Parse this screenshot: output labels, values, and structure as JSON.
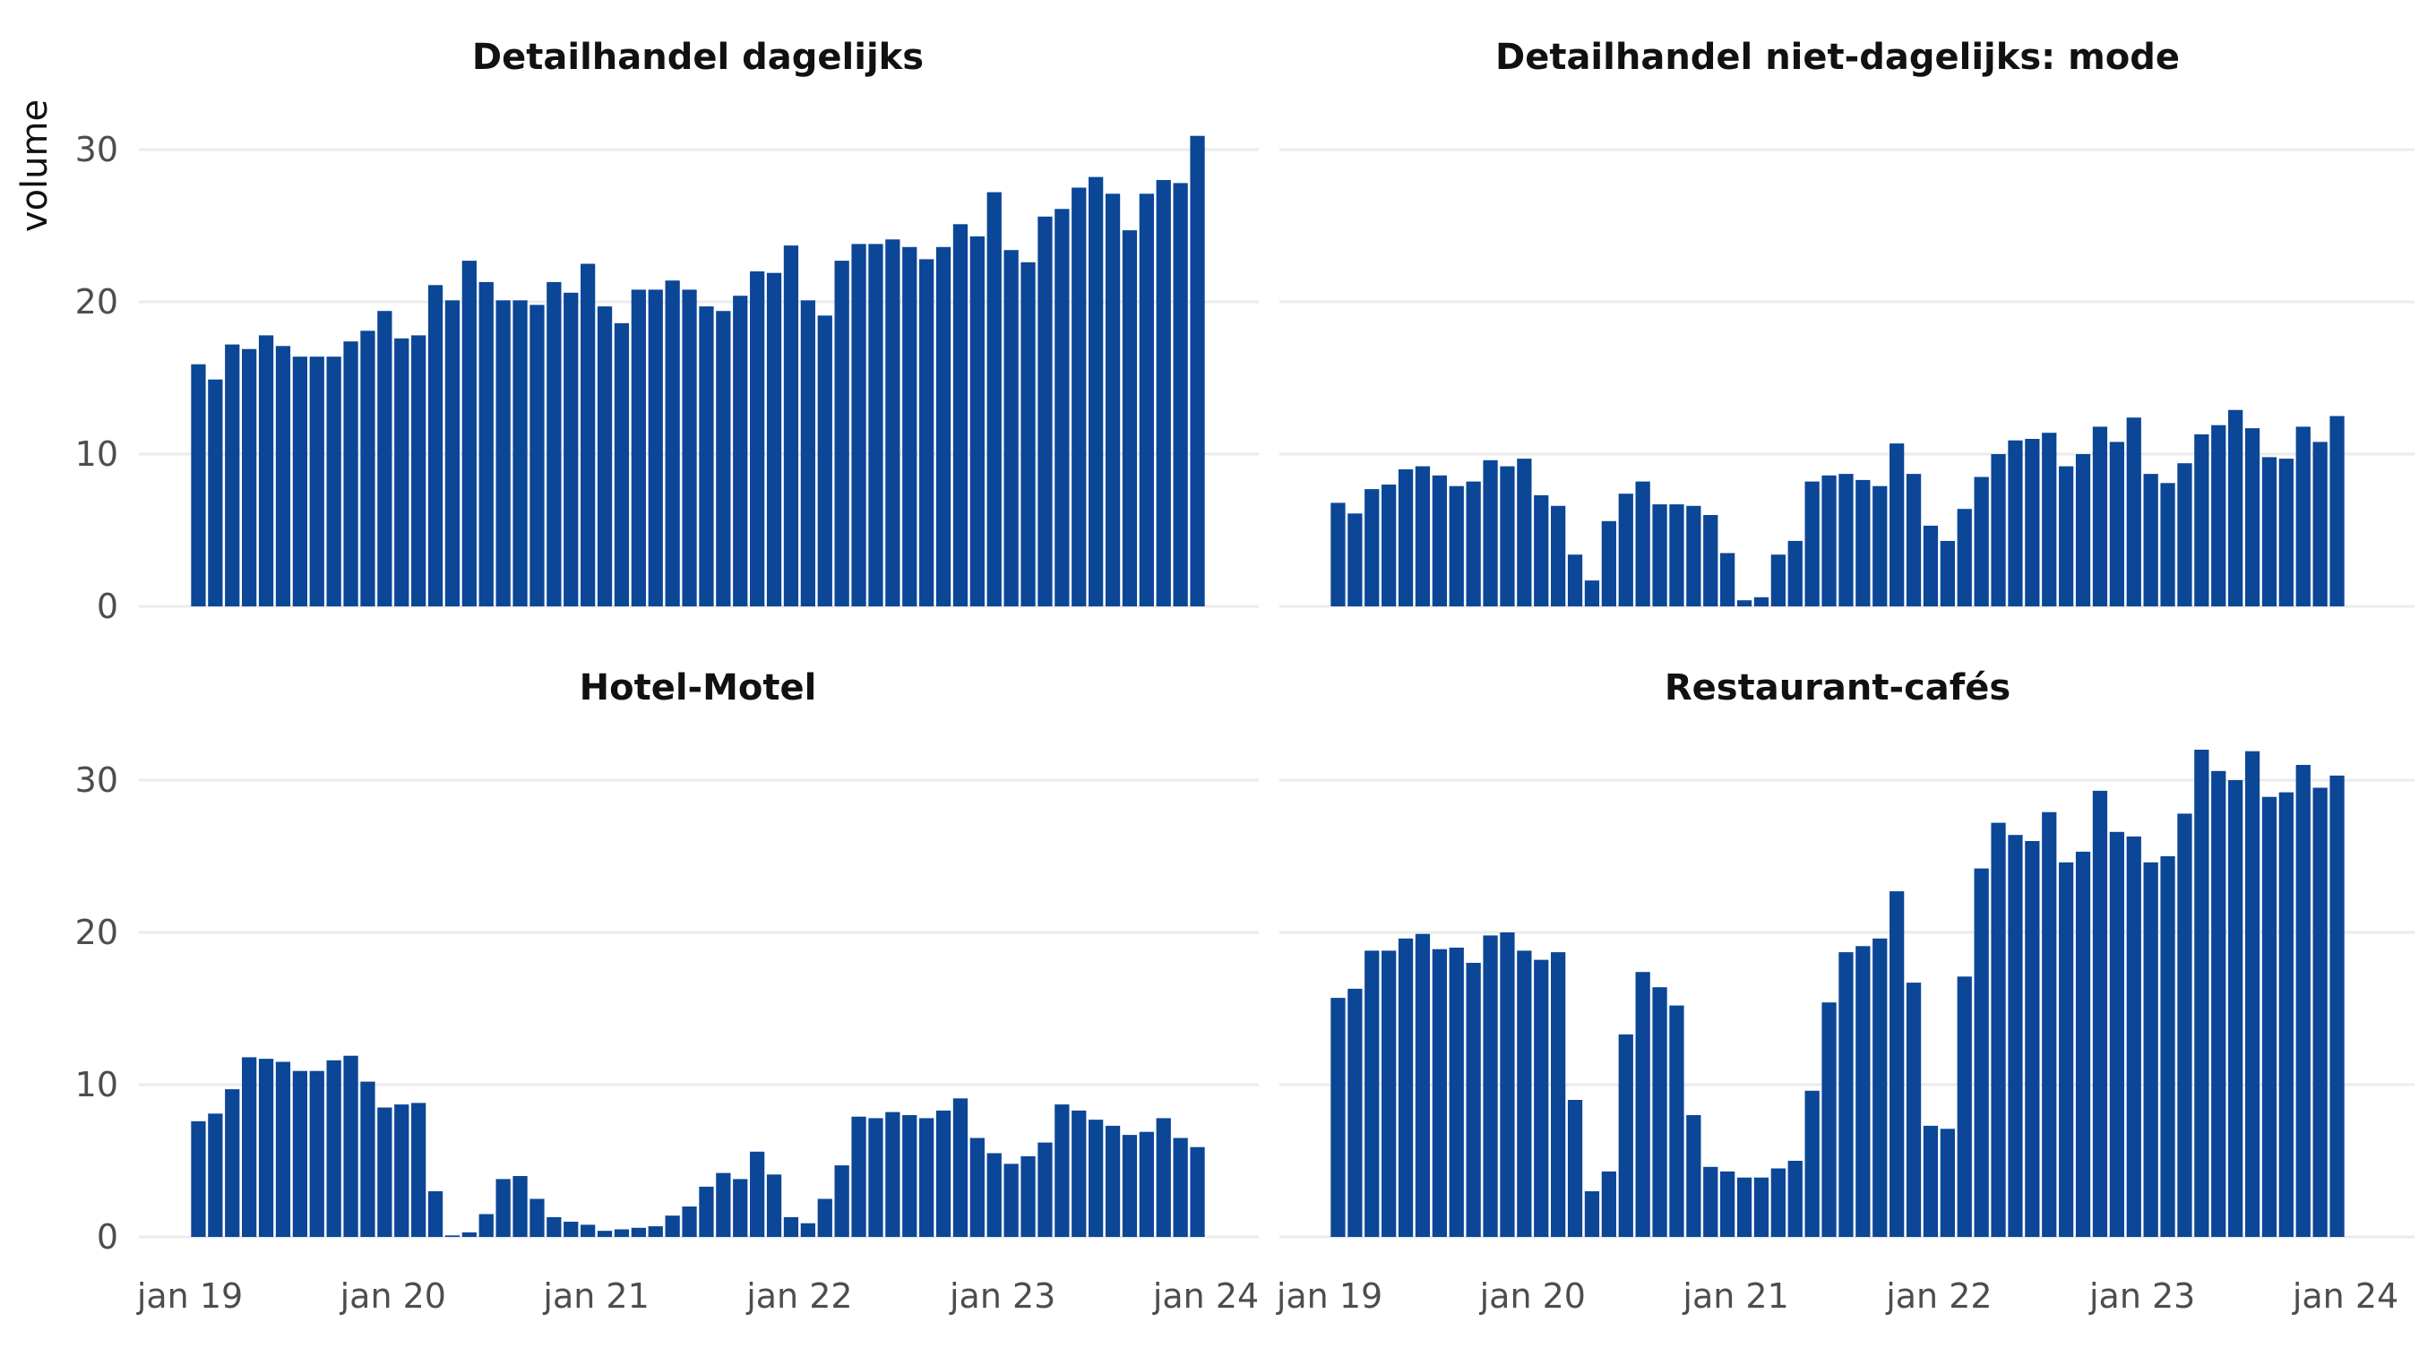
{
  "chart_data": {
    "type": "bar",
    "ylabel": "volume",
    "xlabel": "",
    "colors": {
      "bar": "#0b4697",
      "grid": "#ebebeb",
      "tick_text": "#4d4d4d"
    },
    "x_ticks": [
      "jan 19",
      "jan 20",
      "jan 21",
      "jan 22",
      "jan 23",
      "jan 24"
    ],
    "y_ticks": [
      0,
      10,
      20,
      30
    ],
    "ylim": [
      0,
      31
    ],
    "x_start": "2019-01",
    "grid": true,
    "panels": [
      {
        "title": "Detailhandel dagelijks",
        "values": [
          15.9,
          14.9,
          17.2,
          16.9,
          17.8,
          17.1,
          16.4,
          16.4,
          16.4,
          17.4,
          18.1,
          19.4,
          17.6,
          17.8,
          21.1,
          20.1,
          22.7,
          21.3,
          20.1,
          20.1,
          19.8,
          21.3,
          20.6,
          22.5,
          19.7,
          18.6,
          20.8,
          20.8,
          21.4,
          20.8,
          19.7,
          19.4,
          20.4,
          22.0,
          21.9,
          23.7,
          20.1,
          19.1,
          22.7,
          23.8,
          23.8,
          24.1,
          23.6,
          22.8,
          23.6,
          25.1,
          24.3,
          27.2,
          23.4,
          22.6,
          25.6,
          26.1,
          27.5,
          28.2,
          27.1,
          24.7,
          27.1,
          28.0,
          27.8,
          30.9
        ]
      },
      {
        "title": "Detailhandel niet-dagelijks: mode",
        "values": [
          6.8,
          6.1,
          7.7,
          8.0,
          9.0,
          9.2,
          8.6,
          7.9,
          8.2,
          9.6,
          9.2,
          9.7,
          7.3,
          6.6,
          3.4,
          1.7,
          5.6,
          7.4,
          8.2,
          6.7,
          6.7,
          6.6,
          6.0,
          3.5,
          0.4,
          0.6,
          3.4,
          4.3,
          8.2,
          8.6,
          8.7,
          8.3,
          7.9,
          10.7,
          8.7,
          5.3,
          4.3,
          6.4,
          8.5,
          10.0,
          10.9,
          11.0,
          11.4,
          9.2,
          10.0,
          11.8,
          10.8,
          12.4,
          8.7,
          8.1,
          9.4,
          11.3,
          11.9,
          12.9,
          11.7,
          9.8,
          9.7,
          11.8,
          10.8,
          12.5
        ]
      },
      {
        "title": "Hotel-Motel",
        "values": [
          7.6,
          8.1,
          9.7,
          11.8,
          11.7,
          11.5,
          10.9,
          10.9,
          11.6,
          11.9,
          10.2,
          8.5,
          8.7,
          8.8,
          3.0,
          0.1,
          0.3,
          1.5,
          3.8,
          4.0,
          2.5,
          1.3,
          1.0,
          0.8,
          0.4,
          0.5,
          0.6,
          0.7,
          1.4,
          2.0,
          3.3,
          4.2,
          3.8,
          5.6,
          4.1,
          1.3,
          0.9,
          2.5,
          4.7,
          7.9,
          7.8,
          8.2,
          8.0,
          7.8,
          8.3,
          9.1,
          6.5,
          5.5,
          4.8,
          5.3,
          6.2,
          8.7,
          8.3,
          7.7,
          7.3,
          6.7,
          6.9,
          7.8,
          6.5,
          5.9
        ]
      },
      {
        "title": "Restaurant-cafés",
        "values": [
          15.7,
          16.3,
          18.8,
          18.8,
          19.6,
          19.9,
          18.9,
          19.0,
          18.0,
          19.8,
          20.0,
          18.8,
          18.2,
          18.7,
          9.0,
          3.0,
          4.3,
          13.3,
          17.4,
          16.4,
          15.2,
          8.0,
          4.6,
          4.3,
          3.9,
          3.9,
          4.5,
          5.0,
          9.6,
          15.4,
          18.7,
          19.1,
          19.6,
          22.7,
          16.7,
          7.3,
          7.1,
          17.1,
          24.2,
          27.2,
          26.4,
          26.0,
          27.9,
          24.6,
          25.3,
          29.3,
          26.6,
          26.3,
          24.6,
          25.0,
          27.8,
          32.0,
          30.6,
          30.0,
          31.9,
          28.9,
          29.2,
          31.0,
          29.5,
          30.3
        ]
      }
    ]
  }
}
